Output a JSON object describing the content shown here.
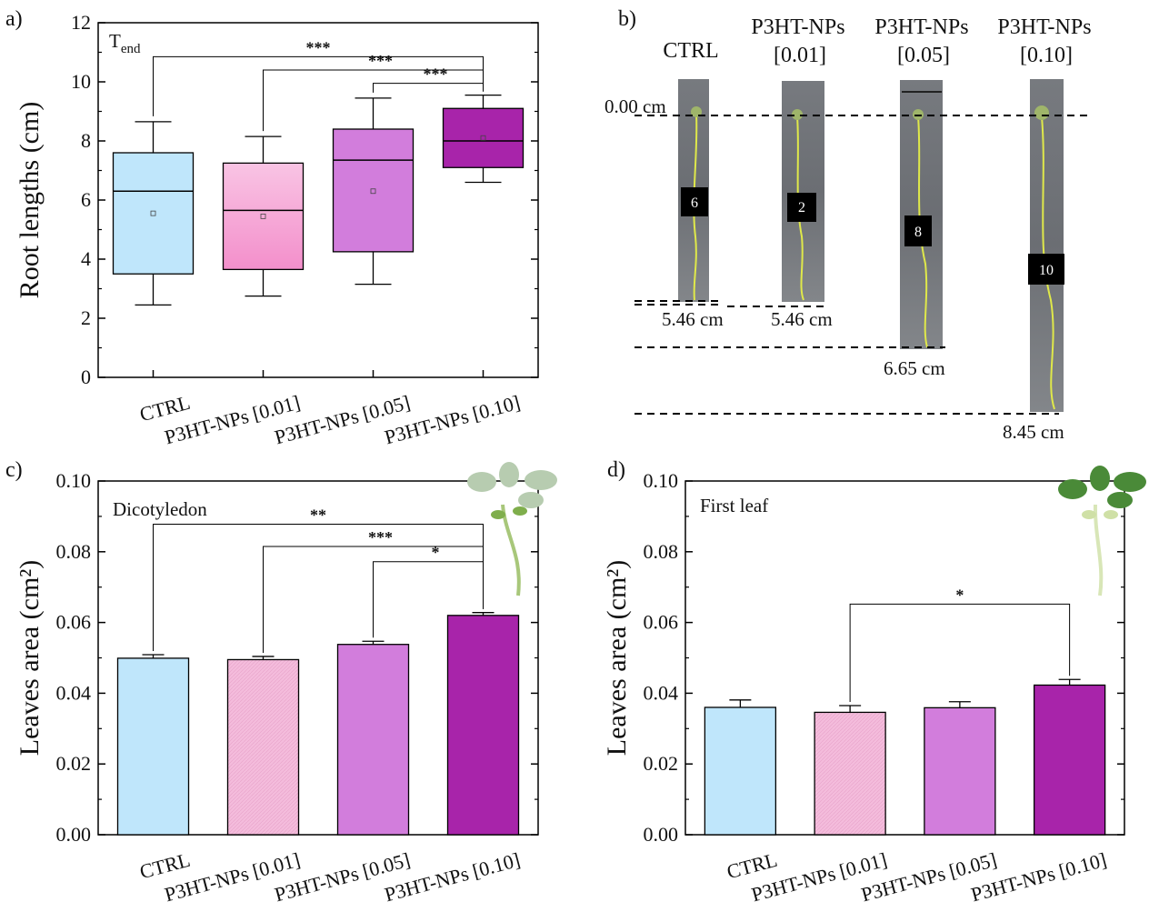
{
  "panels": {
    "a": {
      "letter": "a)"
    },
    "b": {
      "letter": "b)"
    },
    "c": {
      "letter": "c)"
    },
    "d": {
      "letter": "d)"
    }
  },
  "categories": [
    "CTRL",
    "P3HT-NPs [0.01]",
    "P3HT-NPs [0.05]",
    "P3HT-NPs [0.10]"
  ],
  "colors": {
    "CTRL": "#bfe6fb",
    "P3HT-NPs [0.01]": "#f7b6dc",
    "P3HT-NPs [0.05]": "#d27ddc",
    "P3HT-NPs [0.10]": "#a824aa"
  },
  "photo": {
    "labels": [
      {
        "line1": "CTRL",
        "line2": ""
      },
      {
        "line1": "P3HT-NPs",
        "line2": "[0.01]"
      },
      {
        "line1": "P3HT-NPs",
        "line2": "[0.05]"
      },
      {
        "line1": "P3HT-NPs",
        "line2": "[0.10]"
      }
    ],
    "zero_label": "0.00 cm",
    "tags": [
      "6",
      "2",
      "8",
      "10"
    ],
    "lengths": [
      "5.46 cm",
      "5.46 cm",
      "6.65 cm",
      "8.45 cm"
    ]
  },
  "chart_data": [
    {
      "panel": "a",
      "type": "box",
      "annotation_main": "T",
      "annotation_sub": "end",
      "ylabel": "Root lengths (cm)",
      "ylim": [
        0,
        12
      ],
      "yticks": [
        0,
        2,
        4,
        6,
        8,
        10,
        12
      ],
      "categories": [
        "CTRL",
        "P3HT-NPs [0.01]",
        "P3HT-NPs [0.05]",
        "P3HT-NPs [0.10]"
      ],
      "boxes": [
        {
          "whisker_low": 2.45,
          "q1": 3.5,
          "median": 6.3,
          "q3": 7.6,
          "whisker_high": 8.65,
          "mean": 5.55
        },
        {
          "whisker_low": 2.75,
          "q1": 3.65,
          "median": 5.65,
          "q3": 7.25,
          "whisker_high": 8.15,
          "mean": 5.45
        },
        {
          "whisker_low": 3.15,
          "q1": 4.25,
          "median": 7.35,
          "q3": 8.4,
          "whisker_high": 9.45,
          "mean": 6.3
        },
        {
          "whisker_low": 6.6,
          "q1": 7.1,
          "median": 8.0,
          "q3": 9.1,
          "whisker_high": 9.55,
          "mean": 8.1
        }
      ],
      "significance": [
        {
          "from": 0,
          "to": 3,
          "label": "***",
          "y": 10.85
        },
        {
          "from": 1,
          "to": 3,
          "label": "***",
          "y": 10.4
        },
        {
          "from": 2,
          "to": 3,
          "label": "***",
          "y": 9.95
        }
      ]
    },
    {
      "panel": "c",
      "type": "bar",
      "annotation_main": "Dicotyledon",
      "ylabel": "Leaves area (cm²)",
      "ylim": [
        0,
        0.1
      ],
      "yticks": [
        0.0,
        0.02,
        0.04,
        0.06,
        0.08,
        0.1
      ],
      "ytick_labels": [
        "0.00",
        "0.02",
        "0.04",
        "0.06",
        "0.08",
        "0.10"
      ],
      "categories": [
        "CTRL",
        "P3HT-NPs [0.01]",
        "P3HT-NPs [0.05]",
        "P3HT-NPs [0.10]"
      ],
      "values": [
        0.0499,
        0.0495,
        0.0538,
        0.062
      ],
      "errors": [
        0.001,
        0.0009,
        0.0009,
        0.0008
      ],
      "significance": [
        {
          "from": 0,
          "to": 3,
          "label": "**",
          "y": 0.0878
        },
        {
          "from": 1,
          "to": 3,
          "label": "***",
          "y": 0.0815
        },
        {
          "from": 2,
          "to": 3,
          "label": "*",
          "y": 0.0772
        }
      ]
    },
    {
      "panel": "d",
      "type": "bar",
      "annotation_main": "First leaf",
      "ylabel": "Leaves area (cm²)",
      "ylim": [
        0,
        0.1
      ],
      "yticks": [
        0.0,
        0.02,
        0.04,
        0.06,
        0.08,
        0.1
      ],
      "ytick_labels": [
        "0.00",
        "0.02",
        "0.04",
        "0.06",
        "0.08",
        "0.10"
      ],
      "categories": [
        "CTRL",
        "P3HT-NPs [0.01]",
        "P3HT-NPs [0.05]",
        "P3HT-NPs [0.10]"
      ],
      "values": [
        0.036,
        0.0346,
        0.0359,
        0.0423
      ],
      "errors": [
        0.0021,
        0.0019,
        0.0017,
        0.0016
      ],
      "significance": [
        {
          "from": 1,
          "to": 3,
          "label": "*",
          "y": 0.0652
        }
      ]
    }
  ]
}
